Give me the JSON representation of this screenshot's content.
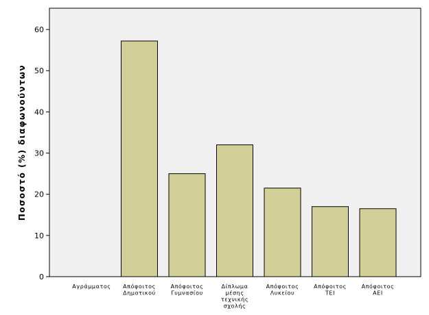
{
  "chart_data": {
    "type": "bar",
    "categories": [
      [
        "Αγράμματος"
      ],
      [
        "Απόφοιτος",
        "Δημοτικού"
      ],
      [
        "Απόφοιτος",
        "Γυμνασίου"
      ],
      [
        "Δίπλωμα",
        "μέσης",
        "τεχνικής",
        "σχολής"
      ],
      [
        "Απόφοιτος",
        "Λυκείου"
      ],
      [
        "Απόφοιτος",
        "ΤΕΙ"
      ],
      [
        "Απόφοιτος",
        "ΑΕΙ"
      ]
    ],
    "values": [
      0,
      57.2,
      25.0,
      32.0,
      21.5,
      17.0,
      16.5
    ],
    "ylabel": "Ποσοστό (%) διαφωνούντων",
    "xlabel": "",
    "ylim": [
      0,
      65
    ],
    "yticks": [
      0,
      10,
      20,
      30,
      40,
      50,
      60
    ],
    "grid": false,
    "colors": {
      "bar_fill": "#d3cf98",
      "bar_stroke": "#000000",
      "plot_background": "#f0f0f0",
      "axis": "#000000"
    }
  }
}
